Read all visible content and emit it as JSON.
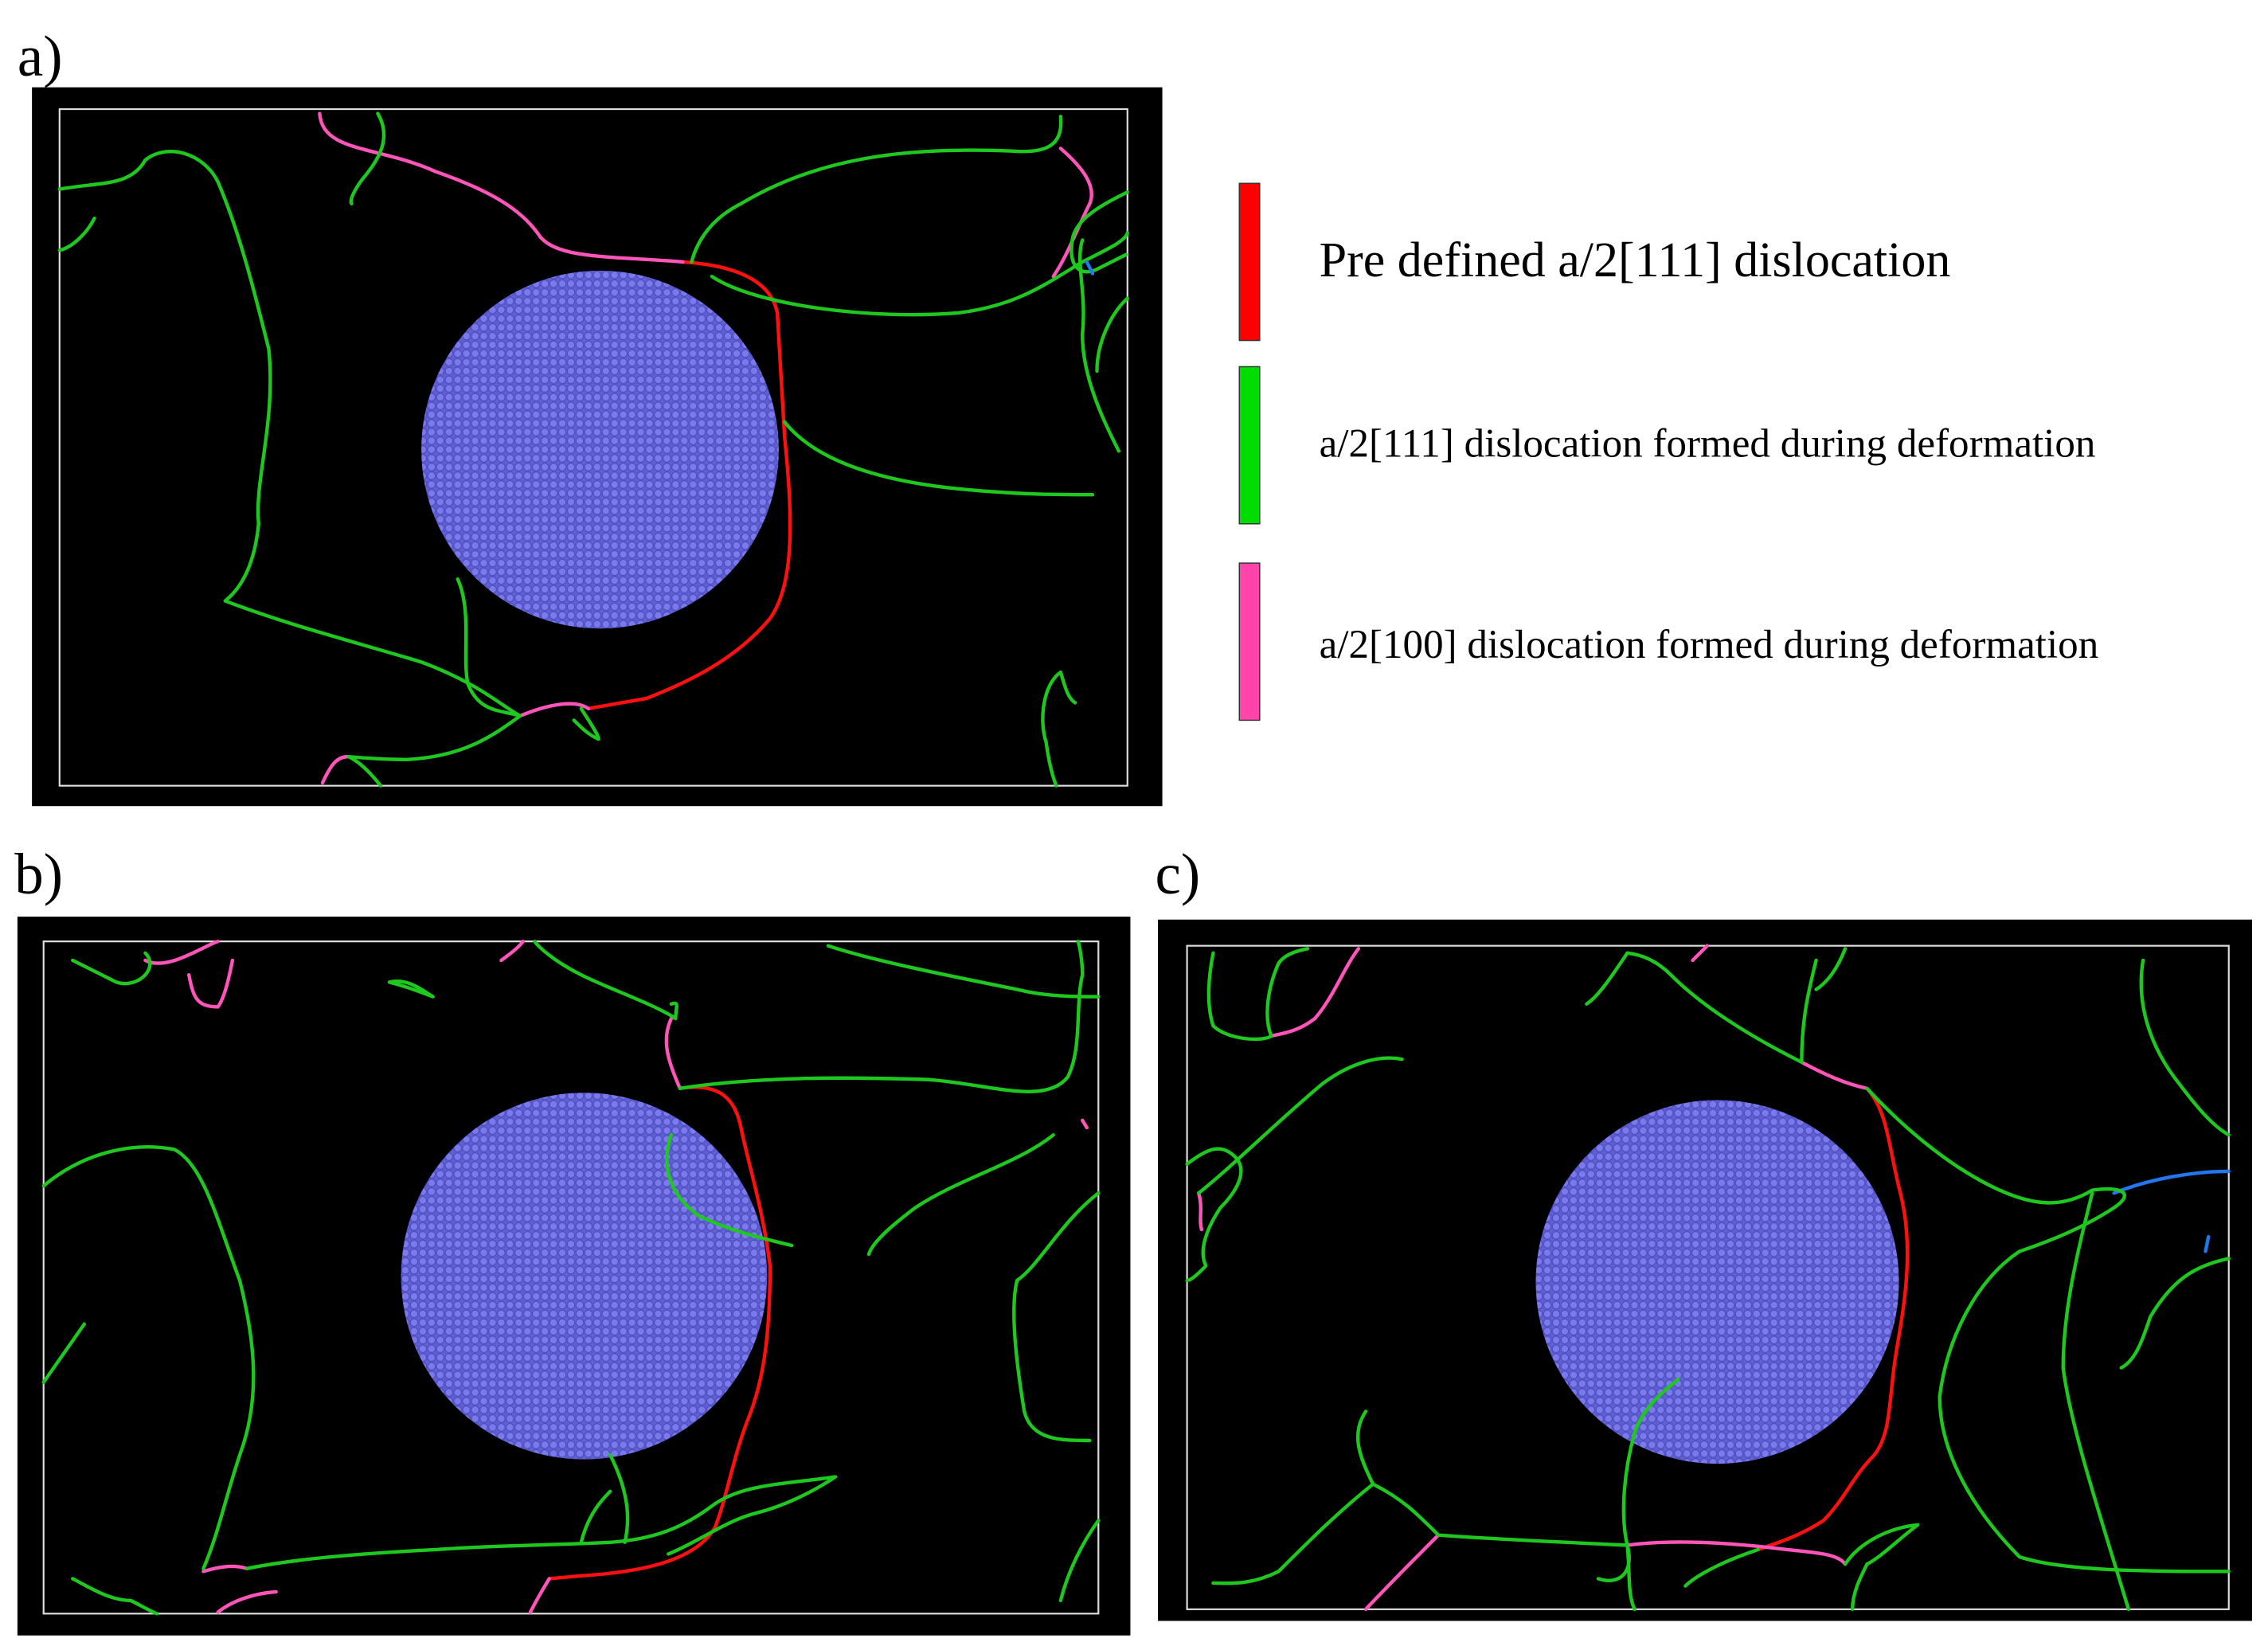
{
  "panels": [
    {
      "label": "a)"
    },
    {
      "label": "b)"
    },
    {
      "label": "c)"
    }
  ],
  "legend": [
    {
      "text": "Pre defined a/2[111] dislocation",
      "color": "#ff0000"
    },
    {
      "text": "a/2[111] dislocation formed during deformation",
      "color": "#00dd00"
    },
    {
      "text": "a/2[100] dislocation formed during deformation",
      "color": "#ff44aa"
    }
  ]
}
